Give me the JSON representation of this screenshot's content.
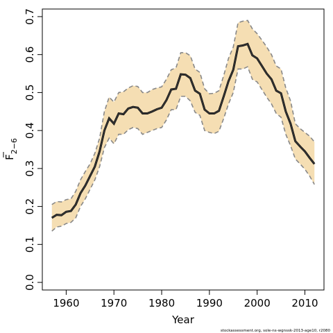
{
  "chart_data": {
    "type": "line",
    "xlabel": "Year",
    "ylabel_main": "F",
    "ylabel_sub": "2−6",
    "credit": "stockassessment.org, sole-ns-wgnssk-2013-age10, r2080",
    "xlim": [
      1955,
      2014
    ],
    "ylim": [
      -0.02,
      0.72
    ],
    "xticks": [
      1960,
      1970,
      1980,
      1990,
      2000,
      2010
    ],
    "yticks": [
      0.0,
      0.1,
      0.2,
      0.3,
      0.4,
      0.5,
      0.6,
      0.7
    ],
    "ytick_labels": [
      "0.0",
      "0.1",
      "0.2",
      "0.3",
      "0.4",
      "0.5",
      "0.6",
      "0.7"
    ],
    "grid": false,
    "colors": {
      "band": "#f5deb3",
      "band_edge": "#888888",
      "line": "#333333"
    },
    "x": [
      1957,
      1958,
      1959,
      1960,
      1961,
      1962,
      1963,
      1964,
      1965,
      1966,
      1967,
      1968,
      1969,
      1970,
      1971,
      1972,
      1973,
      1974,
      1975,
      1976,
      1977,
      1978,
      1979,
      1980,
      1981,
      1982,
      1983,
      1984,
      1985,
      1986,
      1987,
      1988,
      1989,
      1990,
      1991,
      1992,
      1993,
      1994,
      1995,
      1996,
      1997,
      1998,
      1999,
      2000,
      2001,
      2002,
      2003,
      2004,
      2005,
      2006,
      2007,
      2008,
      2009,
      2010,
      2011,
      2012
    ],
    "series": [
      {
        "role": "estimate",
        "values": [
          0.17,
          0.178,
          0.177,
          0.186,
          0.188,
          0.205,
          0.235,
          0.255,
          0.28,
          0.305,
          0.345,
          0.4,
          0.432,
          0.418,
          0.445,
          0.443,
          0.458,
          0.462,
          0.46,
          0.445,
          0.445,
          0.45,
          0.456,
          0.46,
          0.48,
          0.508,
          0.51,
          0.548,
          0.547,
          0.538,
          0.505,
          0.497,
          0.455,
          0.445,
          0.445,
          0.452,
          0.49,
          0.53,
          0.56,
          0.622,
          0.624,
          0.628,
          0.598,
          0.59,
          0.57,
          0.55,
          0.535,
          0.505,
          0.498,
          0.45,
          0.418,
          0.372,
          0.358,
          0.345,
          0.328,
          0.312
        ]
      },
      {
        "role": "upper",
        "values": [
          0.205,
          0.213,
          0.212,
          0.218,
          0.22,
          0.24,
          0.27,
          0.292,
          0.312,
          0.34,
          0.38,
          0.45,
          0.488,
          0.475,
          0.5,
          0.502,
          0.512,
          0.518,
          0.516,
          0.5,
          0.5,
          0.508,
          0.512,
          0.515,
          0.535,
          0.56,
          0.565,
          0.605,
          0.605,
          0.597,
          0.562,
          0.553,
          0.51,
          0.497,
          0.498,
          0.505,
          0.545,
          0.59,
          0.62,
          0.684,
          0.688,
          0.69,
          0.668,
          0.655,
          0.638,
          0.62,
          0.6,
          0.57,
          0.562,
          0.512,
          0.478,
          0.418,
          0.405,
          0.395,
          0.385,
          0.37
        ]
      },
      {
        "role": "lower",
        "values": [
          0.135,
          0.146,
          0.148,
          0.155,
          0.158,
          0.17,
          0.2,
          0.22,
          0.245,
          0.27,
          0.305,
          0.355,
          0.38,
          0.365,
          0.39,
          0.39,
          0.402,
          0.408,
          0.405,
          0.39,
          0.395,
          0.4,
          0.405,
          0.408,
          0.428,
          0.455,
          0.455,
          0.49,
          0.49,
          0.478,
          0.448,
          0.44,
          0.4,
          0.395,
          0.392,
          0.398,
          0.432,
          0.47,
          0.5,
          0.562,
          0.562,
          0.568,
          0.535,
          0.528,
          0.508,
          0.488,
          0.47,
          0.445,
          0.435,
          0.39,
          0.36,
          0.325,
          0.312,
          0.298,
          0.28,
          0.258
        ]
      }
    ]
  }
}
